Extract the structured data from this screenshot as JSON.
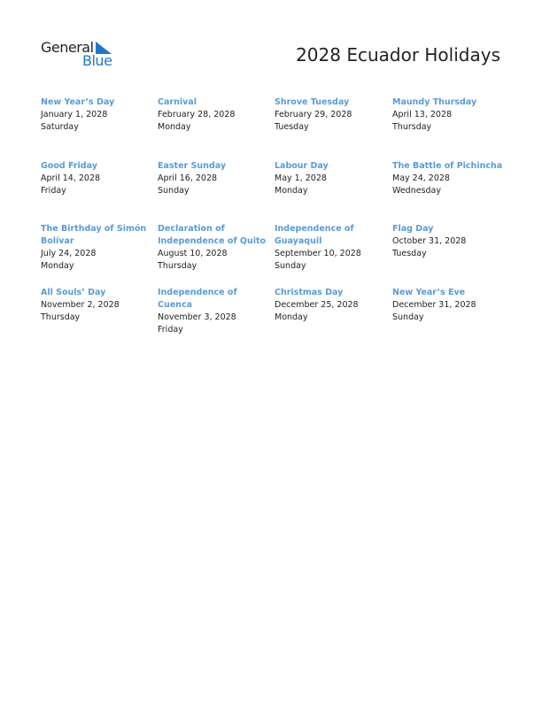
{
  "logo": {
    "word1": "General",
    "word2": "Blue",
    "accent": "#1f77c9"
  },
  "title": "2028 Ecuador Holidays",
  "colors": {
    "holiday_name": "#5b9bd5"
  },
  "holidays": [
    {
      "name": "New Year’s Day",
      "date": "January 1, 2028",
      "day": "Saturday"
    },
    {
      "name": "Carnival",
      "date": "February 28, 2028",
      "day": "Monday"
    },
    {
      "name": "Shrove Tuesday",
      "date": "February 29, 2028",
      "day": "Tuesday"
    },
    {
      "name": "Maundy Thursday",
      "date": "April 13, 2028",
      "day": "Thursday"
    },
    {
      "name": "Good Friday",
      "date": "April 14, 2028",
      "day": "Friday"
    },
    {
      "name": "Easter Sunday",
      "date": "April 16, 2028",
      "day": "Sunday"
    },
    {
      "name": "Labour Day",
      "date": "May 1, 2028",
      "day": "Monday"
    },
    {
      "name": "The Battle of Pichincha",
      "date": "May 24, 2028",
      "day": "Wednesday"
    },
    {
      "name": "The Birthday of Simón Bolívar",
      "date": "July 24, 2028",
      "day": "Monday"
    },
    {
      "name": "Declaration of Independence of Quito",
      "date": "August 10, 2028",
      "day": "Thursday"
    },
    {
      "name": "Independence of Guayaquil",
      "date": "September 10, 2028",
      "day": "Sunday"
    },
    {
      "name": "Flag Day",
      "date": "October 31, 2028",
      "day": "Tuesday"
    },
    {
      "name": "All Souls’ Day",
      "date": "November 2, 2028",
      "day": "Thursday"
    },
    {
      "name": "Independence of Cuenca",
      "date": "November 3, 2028",
      "day": "Friday"
    },
    {
      "name": "Christmas Day",
      "date": "December 25, 2028",
      "day": "Monday"
    },
    {
      "name": "New Year’s Eve",
      "date": "December 31, 2028",
      "day": "Sunday"
    }
  ]
}
